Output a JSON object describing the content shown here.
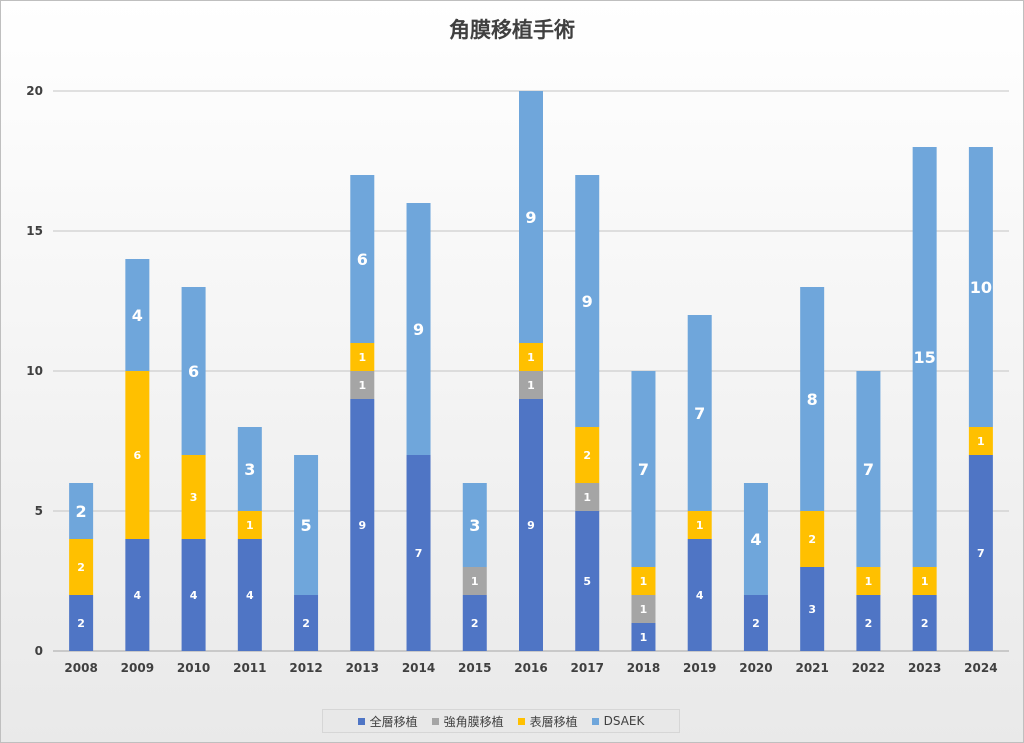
{
  "chart_data": {
    "type": "bar",
    "stacked": true,
    "title": "角膜移植手術",
    "categories": [
      "2008",
      "2009",
      "2010",
      "2011",
      "2012",
      "2013",
      "2014",
      "2015",
      "2016",
      "2017",
      "2018",
      "2019",
      "2020",
      "2021",
      "2022",
      "2023",
      "2024"
    ],
    "series": [
      {
        "name": "全層移植",
        "color": "#4f75c5",
        "values": [
          2,
          4,
          4,
          4,
          2,
          9,
          7,
          2,
          9,
          5,
          1,
          4,
          2,
          3,
          2,
          2,
          7
        ]
      },
      {
        "name": "強角膜移植",
        "color": "#a5a5a5",
        "values": [
          0,
          0,
          0,
          0,
          0,
          1,
          0,
          1,
          1,
          1,
          1,
          0,
          0,
          0,
          0,
          0,
          0
        ]
      },
      {
        "name": "表層移植",
        "color": "#ffc000",
        "values": [
          2,
          6,
          3,
          1,
          0,
          1,
          0,
          0,
          1,
          2,
          1,
          1,
          0,
          2,
          1,
          1,
          1
        ]
      },
      {
        "name": "DSAEK",
        "color": "#6fa6db",
        "values": [
          2,
          4,
          6,
          3,
          5,
          6,
          9,
          3,
          9,
          9,
          7,
          7,
          4,
          8,
          7,
          15,
          10
        ]
      }
    ],
    "ylim": [
      0,
      20
    ],
    "yticks": [
      0,
      5,
      10,
      15,
      20
    ],
    "grid": true,
    "legend_position": "bottom",
    "xlabel": "",
    "ylabel": ""
  }
}
